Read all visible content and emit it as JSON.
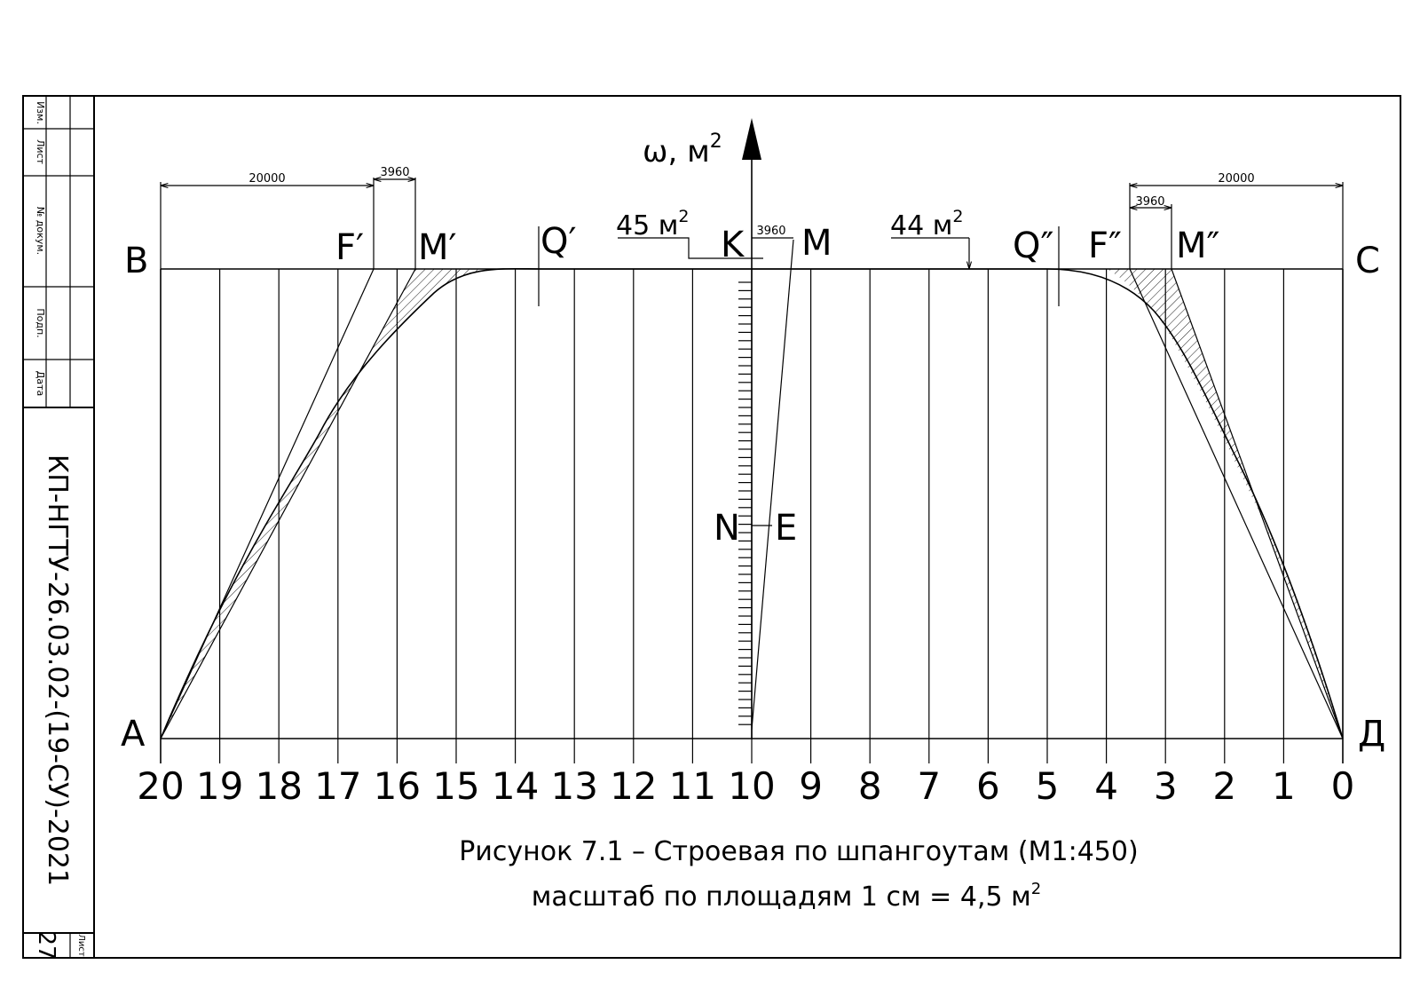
{
  "stamp": {
    "labels": [
      "Изм.",
      "Лист",
      "№ докум.",
      "Подп.",
      "Дата"
    ],
    "document_code": "КП-НГТУ-26.03.02-(19-СУ)-2021",
    "sheet_label": "Лист",
    "sheet_number": "27"
  },
  "diagram": {
    "axis_title": "ω, м",
    "axis_title_superscript": "2",
    "corners": {
      "top_left": "B",
      "top_right": "C",
      "bottom_left": "A",
      "bottom_right": "Д"
    },
    "frame_labels": [
      "20",
      "19",
      "18",
      "17",
      "16",
      "15",
      "14",
      "13",
      "12",
      "11",
      "10",
      "9",
      "8",
      "7",
      "6",
      "5",
      "4",
      "3",
      "2",
      "1",
      "0"
    ],
    "points": {
      "f_prime": "F′",
      "m_prime": "M′",
      "q_prime": "Q′",
      "k": "K",
      "m": "M",
      "q_double": "Q″",
      "f_double": "F″",
      "m_double": "M″",
      "n": "N",
      "e": "E"
    },
    "dimensions": {
      "left_span": "20000",
      "left_small": "3960",
      "center_small": "3960",
      "right_span": "20000",
      "right_small": "3960"
    },
    "area_left": "45 м",
    "area_left_sup": "2",
    "area_right": "44 м",
    "area_right_sup": "2"
  },
  "caption": {
    "line1": "Рисунок 7.1 – Строевая по шпангоутам (М1:450)",
    "line2": "масштаб по площадям 1 см = 4,5 м",
    "line2_sup": "2"
  }
}
